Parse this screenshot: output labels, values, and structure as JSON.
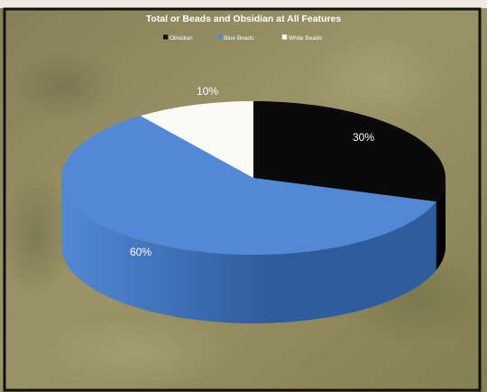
{
  "chart_data": {
    "type": "pie",
    "title": "Total or Beads and Obsidian at All Features",
    "legend_position": "top",
    "three_d": true,
    "slices": [
      {
        "name": "Obsidian",
        "legend_label": "Obsidian",
        "value": 30,
        "label": "30%",
        "color": "#0a0a0a",
        "side_color": "#000000",
        "label_color": "#ffffff"
      },
      {
        "name": "Blue Beads",
        "legend_label": "Blue Beads",
        "value": 60,
        "label": "60%",
        "color": "#5289d6",
        "side_color": "#2f5c9c",
        "label_color": "#ffffff"
      },
      {
        "name": "White Beads",
        "legend_label": "White Beads",
        "value": 10,
        "label": "10%",
        "color": "#fbfbf6",
        "side_color": "#d9d9d2",
        "label_color": "#ffffff"
      }
    ]
  },
  "colors": {
    "background": "#8f8a62",
    "frame": "#111111",
    "top_strip": "#efe9e0"
  }
}
